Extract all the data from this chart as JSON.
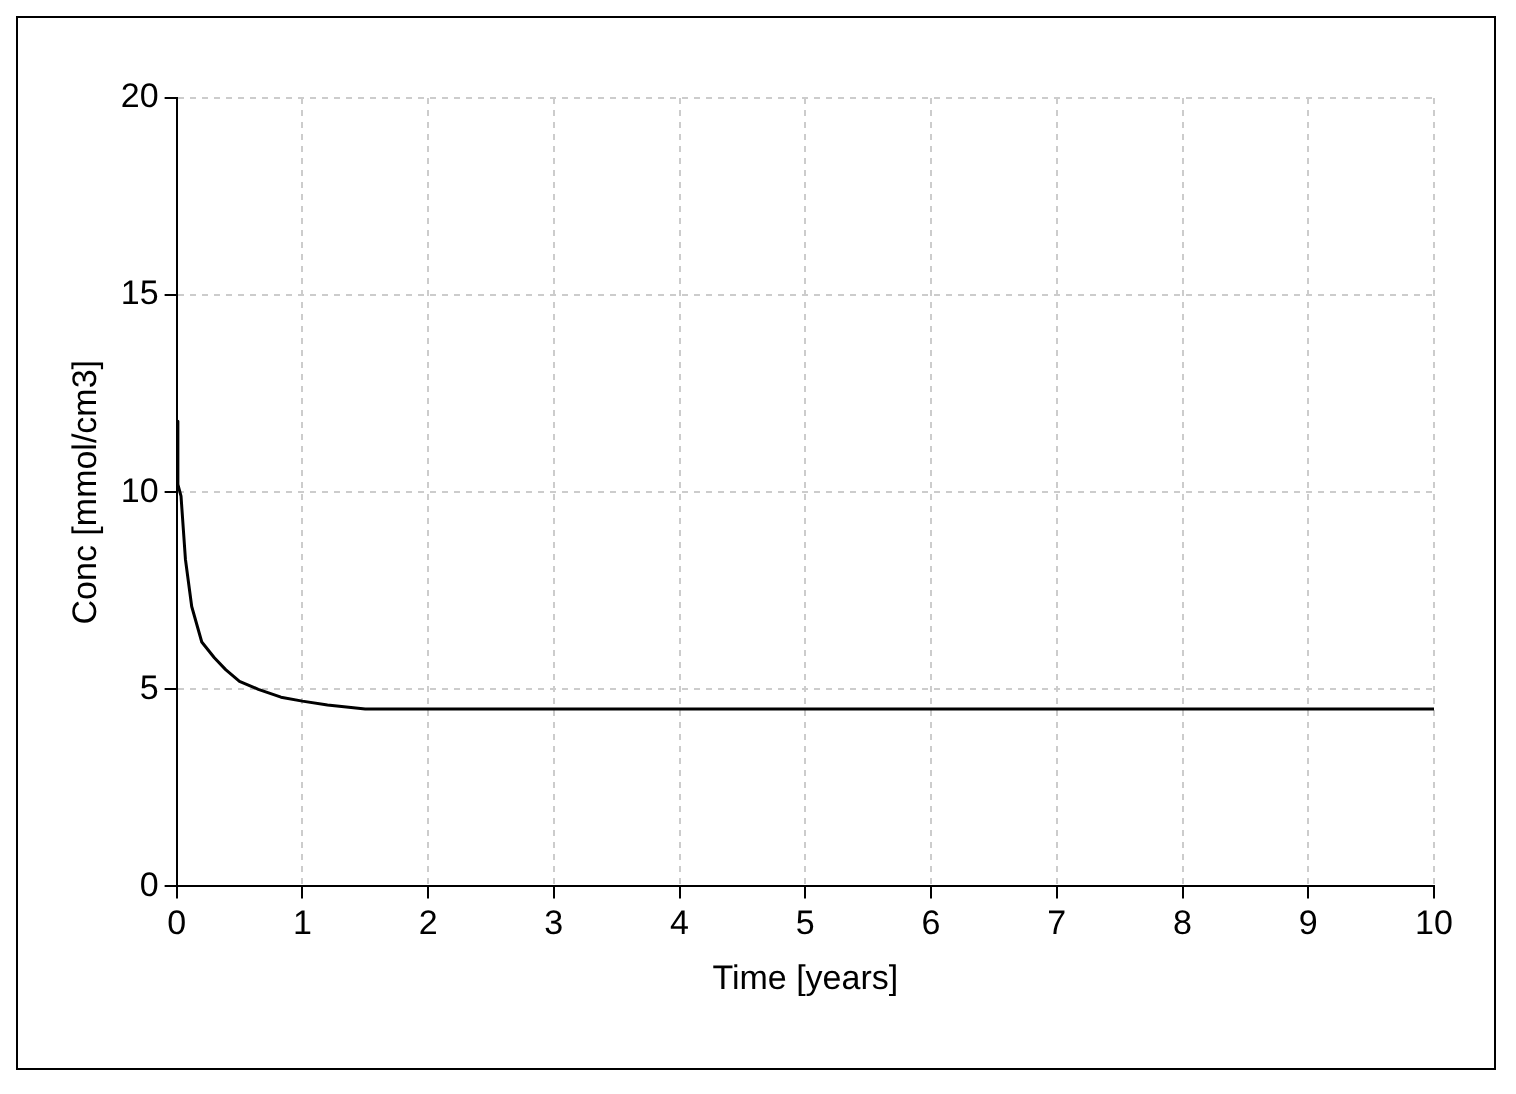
{
  "chart_data": {
    "type": "line",
    "xlabel": "Time [years]",
    "ylabel": "Conc [mmol/cm3]",
    "x": [
      0,
      0.01,
      0.035,
      0.07,
      0.12,
      0.2,
      0.3,
      0.39,
      0.5,
      0.65,
      0.83,
      1.0,
      1.2,
      1.5,
      2,
      3,
      4,
      5,
      6,
      7,
      8,
      9,
      10
    ],
    "series": [
      {
        "color": "#000000",
        "values": [
          11.8,
          10.2,
          9.9,
          8.3,
          7.1,
          6.2,
          5.8,
          5.5,
          5.2,
          5.0,
          4.8,
          4.7,
          4.6,
          4.5,
          4.5,
          4.5,
          4.5,
          4.5,
          4.5,
          4.5,
          4.5,
          4.5,
          4.5
        ]
      }
    ],
    "xlim": [
      0,
      10
    ],
    "xticks": [
      0,
      1,
      2,
      3,
      4,
      5,
      6,
      7,
      8,
      9,
      10
    ],
    "ylim": [
      0,
      20
    ],
    "yticks": [
      0,
      5,
      10,
      15,
      20
    ],
    "grid": true,
    "legend": false,
    "marker": "none",
    "line_style": "solid"
  }
}
